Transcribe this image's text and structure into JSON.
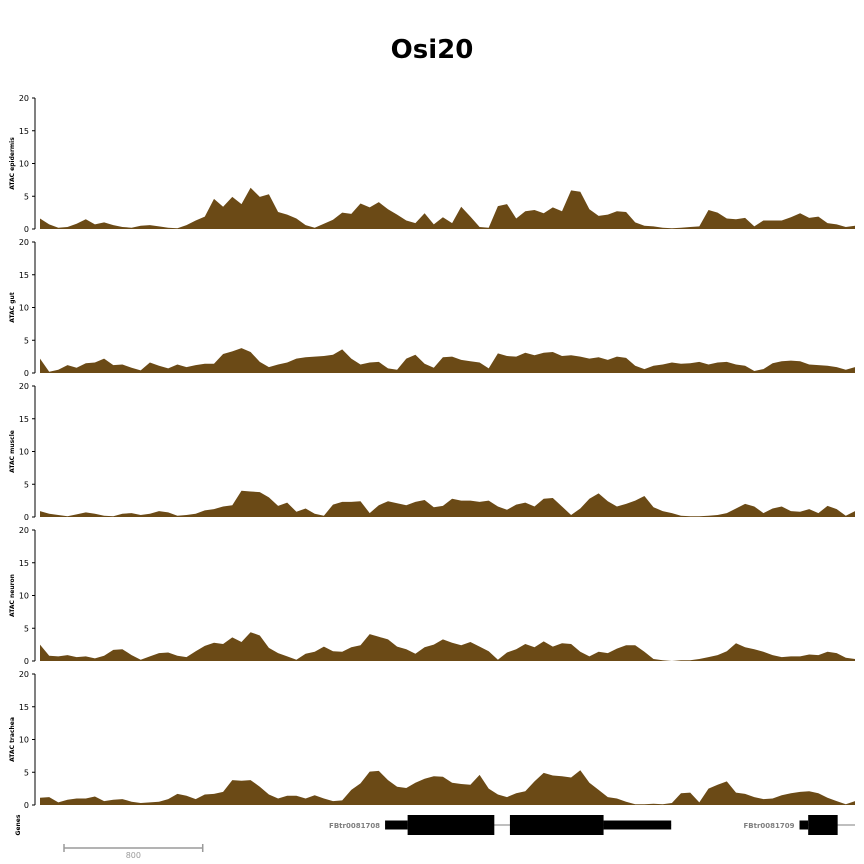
{
  "chart_data": {
    "type": "area",
    "title": "Osi20",
    "x_range": [
      0,
      4700
    ],
    "ylim": [
      0,
      20
    ],
    "yticks": [
      0,
      5,
      10,
      15,
      20
    ],
    "fill_color": "#6b4a16",
    "tracks": [
      {
        "label": "ATAC epidermis",
        "values": [
          1.6,
          0.7,
          0.2,
          0.3,
          0.8,
          1.5,
          0.7,
          1.0,
          0.6,
          0.3,
          0.2,
          0.5,
          0.6,
          0.4,
          0.2,
          0.1,
          0.6,
          1.3,
          1.9,
          4.6,
          3.4,
          4.9,
          3.8,
          6.3,
          4.9,
          5.3,
          2.6,
          2.2,
          1.6,
          0.6,
          0.2,
          0.8,
          1.4,
          2.5,
          2.3,
          3.9,
          3.3,
          4.1,
          3.0,
          2.2,
          1.3,
          0.9,
          2.4,
          0.7,
          1.8,
          0.9,
          3.4,
          1.9,
          0.3,
          0.2,
          3.5,
          3.8,
          1.6,
          2.7,
          2.9,
          2.4,
          3.3,
          2.7,
          5.9,
          5.7,
          3.0,
          2.0,
          2.2,
          2.7,
          2.6,
          1.0,
          0.5,
          0.4,
          0.2,
          0.1,
          0.2,
          0.3,
          0.4,
          2.9,
          2.5,
          1.6,
          1.5,
          1.7,
          0.4,
          1.3,
          1.3,
          1.3,
          1.8,
          2.4,
          1.7,
          1.9,
          0.9,
          0.7,
          0.3,
          0.5
        ]
      },
      {
        "label": "ATAC gut",
        "values": [
          2.2,
          0.2,
          0.5,
          1.2,
          0.8,
          1.5,
          1.6,
          2.2,
          1.2,
          1.3,
          0.8,
          0.4,
          1.6,
          1.1,
          0.7,
          1.3,
          0.9,
          1.2,
          1.4,
          1.4,
          2.9,
          3.3,
          3.8,
          3.2,
          1.7,
          0.9,
          1.3,
          1.6,
          2.2,
          2.4,
          2.5,
          2.6,
          2.8,
          3.6,
          2.2,
          1.3,
          1.6,
          1.7,
          0.7,
          0.5,
          2.2,
          2.8,
          1.4,
          0.8,
          2.4,
          2.5,
          2.0,
          1.8,
          1.6,
          0.7,
          3.0,
          2.6,
          2.5,
          3.1,
          2.7,
          3.1,
          3.2,
          2.6,
          2.7,
          2.5,
          2.2,
          2.4,
          2.0,
          2.5,
          2.3,
          1.1,
          0.6,
          1.1,
          1.3,
          1.6,
          1.4,
          1.5,
          1.7,
          1.3,
          1.6,
          1.7,
          1.3,
          1.1,
          0.3,
          0.6,
          1.5,
          1.8,
          1.9,
          1.8,
          1.3,
          1.2,
          1.1,
          0.9,
          0.5,
          0.9
        ]
      },
      {
        "label": "ATAC muscle",
        "values": [
          0.9,
          0.5,
          0.3,
          0.1,
          0.4,
          0.7,
          0.5,
          0.2,
          0.1,
          0.5,
          0.6,
          0.3,
          0.5,
          0.9,
          0.7,
          0.2,
          0.3,
          0.5,
          1.0,
          1.2,
          1.6,
          1.8,
          4.0,
          3.9,
          3.8,
          3.0,
          1.7,
          2.2,
          0.8,
          1.3,
          0.5,
          0.2,
          1.9,
          2.3,
          2.3,
          2.4,
          0.6,
          1.8,
          2.4,
          2.1,
          1.8,
          2.3,
          2.6,
          1.5,
          1.7,
          2.8,
          2.5,
          2.5,
          2.3,
          2.5,
          1.6,
          1.1,
          1.9,
          2.2,
          1.6,
          2.8,
          2.9,
          1.6,
          0.3,
          1.3,
          2.8,
          3.6,
          2.4,
          1.6,
          2.0,
          2.5,
          3.2,
          1.5,
          0.9,
          0.6,
          0.2,
          0.1,
          0.1,
          0.2,
          0.3,
          0.6,
          1.3,
          2.0,
          1.6,
          0.6,
          1.3,
          1.6,
          0.9,
          0.8,
          1.2,
          0.6,
          1.7,
          1.2,
          0.2,
          0.9
        ]
      },
      {
        "label": "ATAC neuron",
        "values": [
          2.5,
          0.8,
          0.7,
          0.9,
          0.6,
          0.7,
          0.4,
          0.8,
          1.7,
          1.8,
          0.9,
          0.2,
          0.7,
          1.2,
          1.3,
          0.8,
          0.6,
          1.5,
          2.3,
          2.8,
          2.6,
          3.6,
          2.9,
          4.4,
          3.9,
          2.0,
          1.2,
          0.7,
          0.2,
          1.1,
          1.4,
          2.2,
          1.5,
          1.4,
          2.1,
          2.4,
          4.1,
          3.7,
          3.3,
          2.2,
          1.8,
          1.1,
          2.1,
          2.5,
          3.3,
          2.8,
          2.4,
          2.9,
          2.2,
          1.5,
          0.2,
          1.3,
          1.8,
          2.6,
          2.1,
          3.0,
          2.2,
          2.7,
          2.6,
          1.4,
          0.7,
          1.4,
          1.2,
          1.9,
          2.4,
          2.4,
          1.4,
          0.3,
          0.1,
          0.0,
          0.1,
          0.1,
          0.3,
          0.6,
          0.9,
          1.5,
          2.7,
          2.1,
          1.8,
          1.4,
          0.9,
          0.6,
          0.7,
          0.7,
          1.0,
          0.9,
          1.4,
          1.2,
          0.5,
          0.3
        ]
      },
      {
        "label": "ATAC trachea",
        "values": [
          1.1,
          1.2,
          0.4,
          0.8,
          1.0,
          1.0,
          1.3,
          0.6,
          0.8,
          0.9,
          0.5,
          0.3,
          0.4,
          0.5,
          0.9,
          1.7,
          1.4,
          0.9,
          1.6,
          1.7,
          2.0,
          3.8,
          3.7,
          3.8,
          2.8,
          1.6,
          1.0,
          1.4,
          1.4,
          1.0,
          1.5,
          1.0,
          0.6,
          0.7,
          2.3,
          3.3,
          5.1,
          5.2,
          3.8,
          2.8,
          2.6,
          3.4,
          4.0,
          4.4,
          4.3,
          3.4,
          3.2,
          3.1,
          4.6,
          2.5,
          1.6,
          1.2,
          1.8,
          2.1,
          3.6,
          4.9,
          4.5,
          4.4,
          4.2,
          5.3,
          3.4,
          2.3,
          1.2,
          1.0,
          0.5,
          0.1,
          0.1,
          0.2,
          0.1,
          0.3,
          1.8,
          1.9,
          0.4,
          2.5,
          3.1,
          3.6,
          1.9,
          1.7,
          1.2,
          0.9,
          1.0,
          1.5,
          1.8,
          2.0,
          2.1,
          1.8,
          1.1,
          0.6,
          0.1,
          0.6
        ]
      }
    ],
    "genes_track": {
      "label": "Genes",
      "genes": [
        {
          "name": "FBtr0081708",
          "line": [
            1990,
            3640
          ],
          "exons": [
            [
              1990,
              2120,
              "thin"
            ],
            [
              2120,
              2620,
              "thick"
            ],
            [
              2710,
              3250,
              "thick"
            ],
            [
              3250,
              3640,
              "thin"
            ]
          ]
        },
        {
          "name": "FBtr0081709",
          "line": [
            4380,
            4700
          ],
          "exons": [
            [
              4380,
              4430,
              "thin"
            ],
            [
              4430,
              4600,
              "thick"
            ]
          ]
        }
      ]
    },
    "scale_bar": {
      "length": 800,
      "label": "800"
    }
  }
}
